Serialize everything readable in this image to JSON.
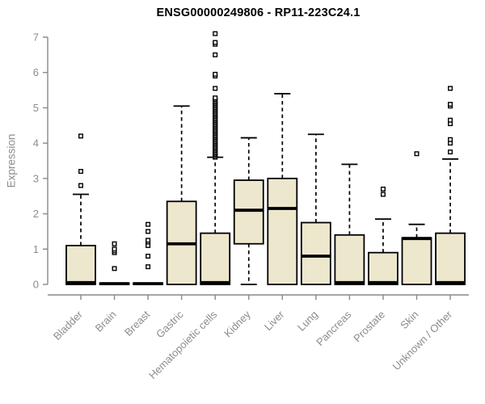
{
  "page": {
    "background": "#FFFFFF"
  },
  "chart_data": {
    "type": "boxplot",
    "title": "ENSG00000249806 - RP11-223C24.1",
    "ylabel": "Expression",
    "xlabel": "",
    "ylim": [
      0,
      7
    ],
    "yticks": [
      0,
      1,
      2,
      3,
      4,
      5,
      6,
      7
    ],
    "grid": false,
    "legend_position": "none",
    "colors": {
      "box_fill": "#EDE7CD",
      "box_stroke": "#000000",
      "median": "#000000",
      "whisker": "#000000",
      "axis": "#898989",
      "tick_label": "#8C8C8C",
      "title": "#000000",
      "outlier_fill": "#FFFFFF",
      "outlier_stroke": "#000000"
    },
    "categories": [
      "Bladder",
      "Brain",
      "Breast",
      "Gastric",
      "Hematopoietic cells",
      "Kidney",
      "Liver",
      "Lung",
      "Pancreas",
      "Prostate",
      "Skin",
      "Unknown / Other"
    ],
    "series": [
      {
        "name": "Bladder",
        "low": 0,
        "q1": 0,
        "median": 0.05,
        "q3": 1.1,
        "high": 2.55,
        "outliers": [
          2.8,
          3.2,
          4.2
        ]
      },
      {
        "name": "Brain",
        "low": 0,
        "q1": 0,
        "median": 0.02,
        "q3": 0.04,
        "high": 0.04,
        "outliers": [
          0.45,
          0.9,
          0.95,
          1.0,
          1.15
        ]
      },
      {
        "name": "Breast",
        "low": 0,
        "q1": 0,
        "median": 0.02,
        "q3": 0.04,
        "high": 0.04,
        "outliers": [
          0.5,
          0.8,
          1.1,
          1.2,
          1.25,
          1.5,
          1.7
        ]
      },
      {
        "name": "Gastric",
        "low": 0,
        "q1": 0,
        "median": 1.15,
        "q3": 2.35,
        "high": 5.05,
        "outliers": []
      },
      {
        "name": "Hematopoietic cells",
        "low": 0,
        "q1": 0,
        "median": 0.05,
        "q3": 1.45,
        "high": 3.6,
        "outliers": [
          3.6,
          3.64,
          3.68,
          3.72,
          3.76,
          3.8,
          3.84,
          3.88,
          3.92,
          3.96,
          4.0,
          4.04,
          4.08,
          4.12,
          4.16,
          4.2,
          4.24,
          4.28,
          4.32,
          4.36,
          4.4,
          4.44,
          4.48,
          4.52,
          4.56,
          4.6,
          4.64,
          4.68,
          4.72,
          4.76,
          4.8,
          4.84,
          4.88,
          4.92,
          4.96,
          5.0,
          5.04,
          5.08,
          5.12,
          5.16,
          5.2,
          5.24,
          5.28,
          5.55,
          5.9,
          5.95,
          6.5,
          6.8,
          6.85,
          7.1
        ]
      },
      {
        "name": "Kidney",
        "low": 0,
        "q1": 1.15,
        "median": 2.1,
        "q3": 2.95,
        "high": 4.15,
        "outliers": []
      },
      {
        "name": "Liver",
        "low": 0,
        "q1": 0,
        "median": 2.15,
        "q3": 3.0,
        "high": 5.4,
        "outliers": []
      },
      {
        "name": "Lung",
        "low": 0,
        "q1": 0,
        "median": 0.8,
        "q3": 1.75,
        "high": 4.25,
        "outliers": []
      },
      {
        "name": "Pancreas",
        "low": 0,
        "q1": 0,
        "median": 0.05,
        "q3": 1.4,
        "high": 3.4,
        "outliers": []
      },
      {
        "name": "Prostate",
        "low": 0,
        "q1": 0,
        "median": 0.05,
        "q3": 0.9,
        "high": 1.85,
        "outliers": [
          2.55,
          2.7
        ]
      },
      {
        "name": "Skin",
        "low": 0,
        "q1": 0,
        "median": 1.3,
        "q3": 1.32,
        "high": 1.7,
        "outliers": [
          3.7
        ]
      },
      {
        "name": "Unknown / Other",
        "low": 0,
        "q1": 0,
        "median": 0.05,
        "q3": 1.45,
        "high": 3.55,
        "outliers": [
          3.75,
          4.0,
          4.1,
          4.55,
          4.65,
          5.05,
          5.1,
          5.55
        ]
      }
    ]
  }
}
